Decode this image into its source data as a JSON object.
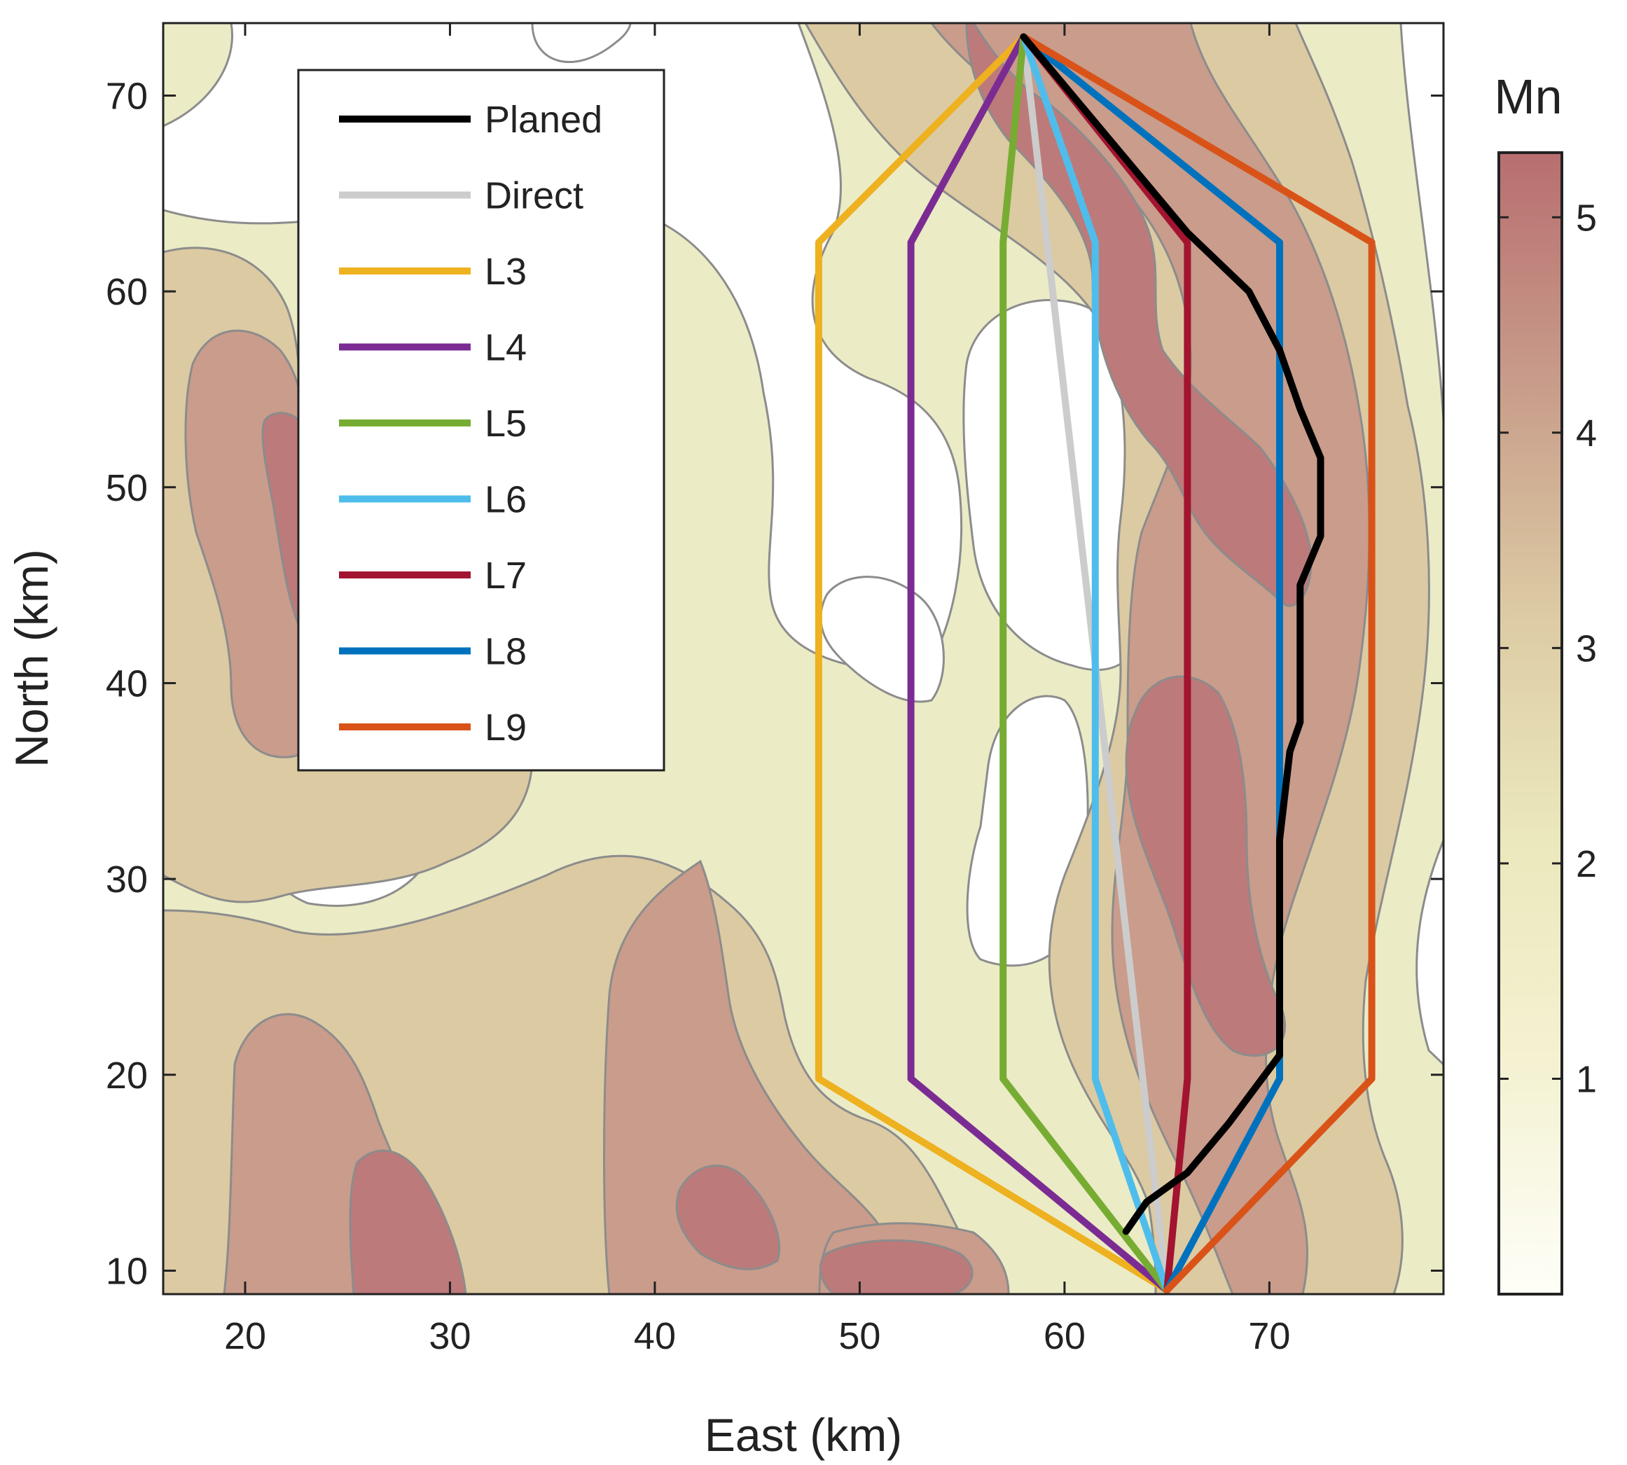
{
  "chart_data": {
    "type": "contour-map-with-paths",
    "xlabel": "East (km)",
    "ylabel": "North (km)",
    "xlim": [
      16,
      78.5
    ],
    "ylim": [
      8.8,
      73.7
    ],
    "xticks": [
      20,
      30,
      40,
      50,
      60,
      70
    ],
    "yticks": [
      10,
      20,
      30,
      40,
      50,
      60,
      70
    ],
    "start": {
      "x": 58,
      "y": 73
    },
    "end": {
      "x": 65,
      "y": 9
    },
    "colorbar": {
      "title": "Mn",
      "range": [
        0,
        5.3
      ],
      "ticks": [
        1,
        2,
        3,
        4,
        5
      ],
      "gradient": [
        "#fefef8",
        "#f4f2d2",
        "#ebe8bc",
        "#dccaa3",
        "#c89c8a",
        "#b86e70"
      ]
    },
    "contour_levels": [
      {
        "name": "level-1",
        "mn": 1.2,
        "color": "#ebebc6"
      },
      {
        "name": "level-2",
        "mn": 2.6,
        "color": "#dccaa3"
      },
      {
        "name": "level-3",
        "mn": 3.8,
        "color": "#c99c8b"
      },
      {
        "name": "level-4",
        "mn": 4.6,
        "color": "#bd7a7a"
      }
    ],
    "series": [
      {
        "name": "Planed",
        "color": "#000000",
        "x": [
          58,
          62,
          66,
          69,
          70.5,
          71.5,
          72.5,
          72.5,
          71.5,
          71.5,
          71,
          70.5,
          70.5,
          68,
          66,
          64,
          63
        ],
        "y": [
          73,
          68,
          63,
          60,
          57,
          54,
          51.5,
          47.5,
          45,
          38,
          36.5,
          32,
          21,
          17.5,
          15,
          13.5,
          12
        ]
      },
      {
        "name": "Direct",
        "color": "#cccccc",
        "x": [
          58,
          65
        ],
        "y": [
          73,
          9
        ]
      },
      {
        "name": "L3",
        "color": "#eeb11f",
        "x": [
          58,
          48,
          48,
          65
        ],
        "y": [
          73,
          62.5,
          19.8,
          9
        ]
      },
      {
        "name": "L4",
        "color": "#7b2c93",
        "x": [
          58,
          52.5,
          52.5,
          65
        ],
        "y": [
          73,
          62.5,
          19.8,
          9
        ]
      },
      {
        "name": "L5",
        "color": "#77ac33",
        "x": [
          58,
          57,
          57,
          65
        ],
        "y": [
          73,
          62.5,
          19.8,
          9
        ]
      },
      {
        "name": "L6",
        "color": "#4fbdeb",
        "x": [
          58,
          61.5,
          61.5,
          65
        ],
        "y": [
          73,
          62.5,
          19.8,
          9
        ]
      },
      {
        "name": "L7",
        "color": "#a2142f",
        "x": [
          58,
          66,
          66,
          65
        ],
        "y": [
          73,
          62.5,
          19.8,
          9
        ]
      },
      {
        "name": "L8",
        "color": "#0072bd",
        "x": [
          58,
          70.5,
          70.5,
          65
        ],
        "y": [
          73,
          62.5,
          19.8,
          9
        ]
      },
      {
        "name": "L9",
        "color": "#d95319",
        "x": [
          58,
          75,
          75,
          65
        ],
        "y": [
          73,
          62.5,
          19.8,
          9
        ]
      }
    ]
  }
}
